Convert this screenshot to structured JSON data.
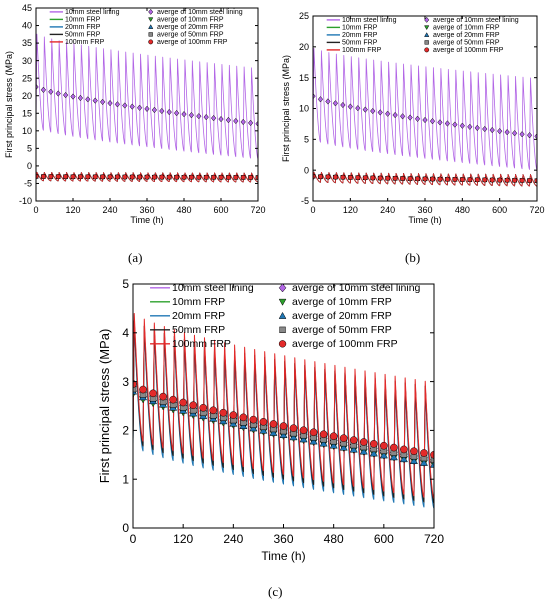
{
  "figure": {
    "panels": [
      "(a)",
      "(b)",
      "(c)"
    ]
  },
  "chart_data": [
    {
      "type": "line",
      "panel": "(a)",
      "xlabel": "Time (h)",
      "ylabel": "First principal stress (MPa)",
      "xlim": [
        0,
        720
      ],
      "ylim": [
        -10,
        45
      ],
      "xticks": [
        0,
        120,
        240,
        360,
        480,
        600,
        720
      ],
      "yticks": [
        -10,
        -5,
        0,
        5,
        10,
        15,
        20,
        25,
        30,
        35,
        40,
        45
      ],
      "grid": false,
      "legend_position": "top",
      "cycle_period_h": 24,
      "series": [
        {
          "name": "10mm steel lining",
          "color": "#b266e6",
          "style": "line",
          "peak_start": 38,
          "peak_end": 28,
          "trough_start": 11,
          "trough_end": 2
        },
        {
          "name": "10mm FRP",
          "color": "#2ca02c",
          "style": "line",
          "peak_start": -1.8,
          "peak_end": -2.0,
          "trough_start": -4.2,
          "trough_end": -4.6
        },
        {
          "name": "20mm FRP",
          "color": "#1f77b4",
          "style": "line",
          "peak_start": -1.8,
          "peak_end": -2.0,
          "trough_start": -4.2,
          "trough_end": -4.6
        },
        {
          "name": "50mm FRP",
          "color": "#222222",
          "style": "line",
          "peak_start": -1.8,
          "peak_end": -2.0,
          "trough_start": -4.2,
          "trough_end": -4.6
        },
        {
          "name": "100mm FRP",
          "color": "#e32a2a",
          "style": "line",
          "peak_start": -1.8,
          "peak_end": -2.0,
          "trough_start": -4.2,
          "trough_end": -4.6
        },
        {
          "name": "averge of 10mm steel lining",
          "color": "#b266e6",
          "style": "marker",
          "marker": "diamond",
          "avg_start": 22.5,
          "avg_end": 12
        },
        {
          "name": "averge of 10mm FRP",
          "color": "#2ca02c",
          "style": "marker",
          "marker": "triangle-down",
          "avg_start": -3.0,
          "avg_end": -3.3
        },
        {
          "name": "averge of 20mm FRP",
          "color": "#1f77b4",
          "style": "marker",
          "marker": "triangle-up",
          "avg_start": -3.0,
          "avg_end": -3.3
        },
        {
          "name": "averge of 50mm FRP",
          "color": "#888888",
          "style": "marker",
          "marker": "square",
          "avg_start": -3.0,
          "avg_end": -3.3
        },
        {
          "name": "averge of 100mm FRP",
          "color": "#e32a2a",
          "style": "marker",
          "marker": "circle",
          "avg_start": -3.0,
          "avg_end": -3.3
        }
      ]
    },
    {
      "type": "line",
      "panel": "(b)",
      "xlabel": "Time (h)",
      "ylabel": "First principal stress (MPa)",
      "xlim": [
        0,
        720
      ],
      "ylim": [
        -5,
        25
      ],
      "xticks": [
        0,
        120,
        240,
        360,
        480,
        600,
        720
      ],
      "yticks": [
        -5,
        0,
        5,
        10,
        15,
        20,
        25
      ],
      "grid": false,
      "legend_position": "top",
      "cycle_period_h": 24,
      "series": [
        {
          "name": "10mm steel lining",
          "color": "#b266e6",
          "style": "line",
          "peak_start": 20,
          "peak_end": 15,
          "trough_start": 5,
          "trough_end": 0
        },
        {
          "name": "10mm FRP",
          "color": "#2ca02c",
          "style": "line",
          "peak_start": -0.3,
          "peak_end": -0.7,
          "trough_start": -1.9,
          "trough_end": -2.6
        },
        {
          "name": "20mm FRP",
          "color": "#1f77b4",
          "style": "line",
          "peak_start": -0.3,
          "peak_end": -0.7,
          "trough_start": -1.9,
          "trough_end": -2.6
        },
        {
          "name": "50mm FRP",
          "color": "#222222",
          "style": "line",
          "peak_start": -0.3,
          "peak_end": -0.7,
          "trough_start": -1.9,
          "trough_end": -2.6
        },
        {
          "name": "100mm FRP",
          "color": "#e32a2a",
          "style": "line",
          "peak_start": -0.3,
          "peak_end": -0.7,
          "trough_start": -1.9,
          "trough_end": -2.6
        },
        {
          "name": "averge of 10mm steel lining",
          "color": "#b266e6",
          "style": "marker",
          "marker": "diamond",
          "avg_start": 12,
          "avg_end": 5.5
        },
        {
          "name": "averge of 10mm FRP",
          "color": "#2ca02c",
          "style": "marker",
          "marker": "triangle-down",
          "avg_start": -1.0,
          "avg_end": -1.7
        },
        {
          "name": "averge of 20mm FRP",
          "color": "#1f77b4",
          "style": "marker",
          "marker": "triangle-up",
          "avg_start": -1.0,
          "avg_end": -1.7
        },
        {
          "name": "averge of 50mm FRP",
          "color": "#888888",
          "style": "marker",
          "marker": "square",
          "avg_start": -1.0,
          "avg_end": -1.7
        },
        {
          "name": "averge of 100mm FRP",
          "color": "#e32a2a",
          "style": "marker",
          "marker": "circle",
          "avg_start": -1.0,
          "avg_end": -1.7
        }
      ]
    },
    {
      "type": "line",
      "panel": "(c)",
      "xlabel": "Time (h)",
      "ylabel": "First principal stress (MPa)",
      "xlim": [
        0,
        720
      ],
      "ylim": [
        0,
        5
      ],
      "xticks": [
        0,
        120,
        240,
        360,
        480,
        600,
        720
      ],
      "yticks": [
        0,
        1,
        2,
        3,
        4,
        5
      ],
      "grid": false,
      "legend_position": "top",
      "cycle_period_h": 24,
      "series": [
        {
          "name": "10mm steel lining",
          "color": "#b266e6",
          "style": "line",
          "peak_start": 4.3,
          "peak_end": 2.9,
          "trough_start": 1.8,
          "trough_end": 0.5
        },
        {
          "name": "10mm FRP",
          "color": "#2ca02c",
          "style": "line",
          "peak_start": 4.3,
          "peak_end": 2.9,
          "trough_start": 1.8,
          "trough_end": 0.5
        },
        {
          "name": "20mm FRP",
          "color": "#1f77b4",
          "style": "line",
          "peak_start": 4.2,
          "peak_end": 2.8,
          "trough_start": 1.7,
          "trough_end": 0.4
        },
        {
          "name": "50mm FRP",
          "color": "#222222",
          "style": "line",
          "peak_start": 4.3,
          "peak_end": 2.9,
          "trough_start": 1.8,
          "trough_end": 0.5
        },
        {
          "name": "100mm FRP",
          "color": "#e32a2a",
          "style": "line",
          "peak_start": 4.45,
          "peak_end": 3.0,
          "trough_start": 1.9,
          "trough_end": 0.6
        },
        {
          "name": "averge of 10mm steel lining",
          "color": "#b266e6",
          "style": "marker",
          "marker": "diamond",
          "avg_start": 2.9,
          "avg_end": 1.4
        },
        {
          "name": "averge of 10mm FRP",
          "color": "#2ca02c",
          "style": "marker",
          "marker": "triangle-down",
          "avg_start": 2.75,
          "avg_end": 1.3
        },
        {
          "name": "averge of 20mm FRP",
          "color": "#1f77b4",
          "style": "marker",
          "marker": "triangle-up",
          "avg_start": 2.8,
          "avg_end": 1.3
        },
        {
          "name": "averge of 50mm FRP",
          "color": "#888888",
          "style": "marker",
          "marker": "square",
          "avg_start": 2.85,
          "avg_end": 1.4
        },
        {
          "name": "averge of 100mm FRP",
          "color": "#e32a2a",
          "style": "marker",
          "marker": "circle",
          "avg_start": 2.95,
          "avg_end": 1.5
        }
      ]
    }
  ]
}
